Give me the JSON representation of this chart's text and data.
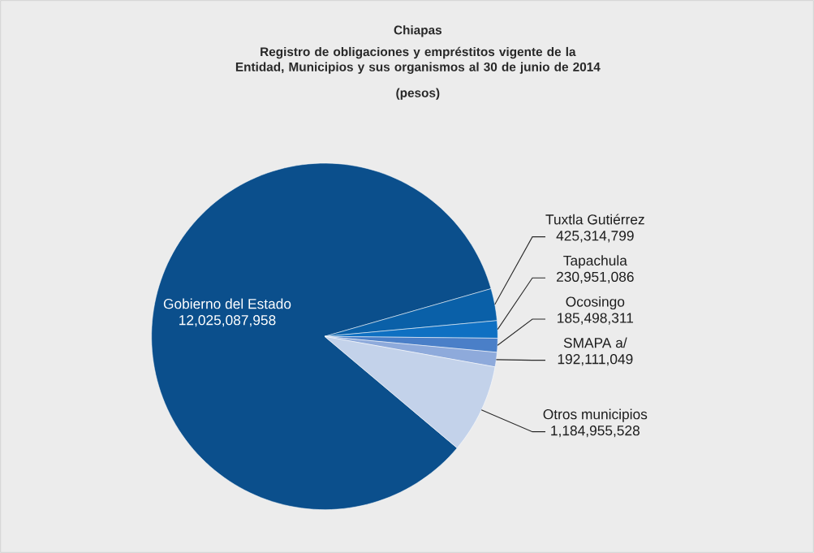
{
  "chart_data": {
    "type": "pie",
    "title": "Chiapas",
    "subtitle": "Registro de obligaciones y empréstitos vigente de la Entidad, Municipios y sus organismos al 30 de junio de 2014",
    "annotations": [
      "(pesos)"
    ],
    "categories": [
      "Gobierno del Estado",
      "Tuxtla Gutiérrez",
      "Tapachula",
      "Ocosingo",
      "SMAPA a/",
      "Otros municipios"
    ],
    "values": [
      12025087958,
      425314799,
      230951086,
      185498311,
      192111049,
      1184955528
    ],
    "value_labels": [
      "12,025,087,958",
      "425,314,799",
      "230,951,086",
      "185,498,311",
      "192,111,049",
      "1,184,955,528"
    ],
    "colors": [
      "#0b4f8c",
      "#0a60a8",
      "#0f70c2",
      "#4a7fc8",
      "#8eaadb",
      "#c3d2ea"
    ]
  }
}
